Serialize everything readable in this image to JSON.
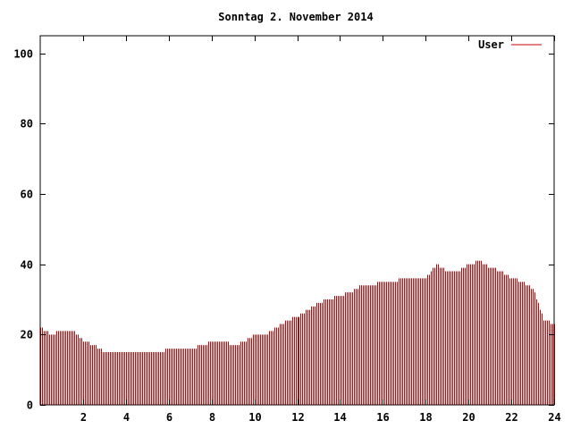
{
  "chart_data": {
    "type": "bar",
    "title": "Sonntag 2. November 2014",
    "xlabel": "",
    "ylabel": "",
    "xlim": [
      0,
      24
    ],
    "ylim": [
      0,
      105
    ],
    "x_ticks": [
      2,
      4,
      6,
      8,
      10,
      12,
      14,
      16,
      18,
      20,
      22,
      24
    ],
    "x_tick_labels": [
      "2",
      "4",
      "6",
      "8",
      "10",
      "12",
      "14",
      "16",
      "18",
      "20",
      "22",
      "24"
    ],
    "y_ticks": [
      0,
      20,
      40,
      60,
      80,
      100
    ],
    "y_tick_labels": [
      "0",
      "20",
      "40",
      "60",
      "80",
      "100"
    ],
    "grid": false,
    "legend": {
      "position": "top-right",
      "entries": [
        "User"
      ]
    },
    "series": [
      {
        "name": "User",
        "color": "#cc0000",
        "x": [
          0.0,
          0.5,
          1.0,
          1.5,
          2.0,
          2.5,
          3.0,
          3.5,
          4.0,
          4.5,
          5.0,
          5.5,
          6.0,
          6.5,
          7.0,
          7.5,
          8.0,
          8.5,
          9.0,
          9.5,
          10.0,
          10.5,
          11.0,
          11.5,
          12.0,
          12.5,
          13.0,
          13.5,
          14.0,
          14.5,
          15.0,
          15.5,
          16.0,
          16.5,
          17.0,
          17.5,
          18.0,
          18.5,
          19.0,
          19.5,
          20.0,
          20.5,
          21.0,
          21.5,
          22.0,
          22.5,
          23.0,
          23.5,
          24.0
        ],
        "y": [
          22,
          20,
          21,
          21,
          18,
          17,
          15,
          15,
          15,
          15,
          15,
          15,
          16,
          16,
          16,
          17,
          18,
          18,
          17,
          18,
          20,
          20,
          22,
          24,
          25,
          27,
          29,
          30,
          31,
          32,
          34,
          34,
          35,
          35,
          36,
          36,
          36,
          40,
          38,
          38,
          40,
          41,
          39,
          38,
          36,
          35,
          33,
          24,
          23
        ]
      }
    ]
  }
}
